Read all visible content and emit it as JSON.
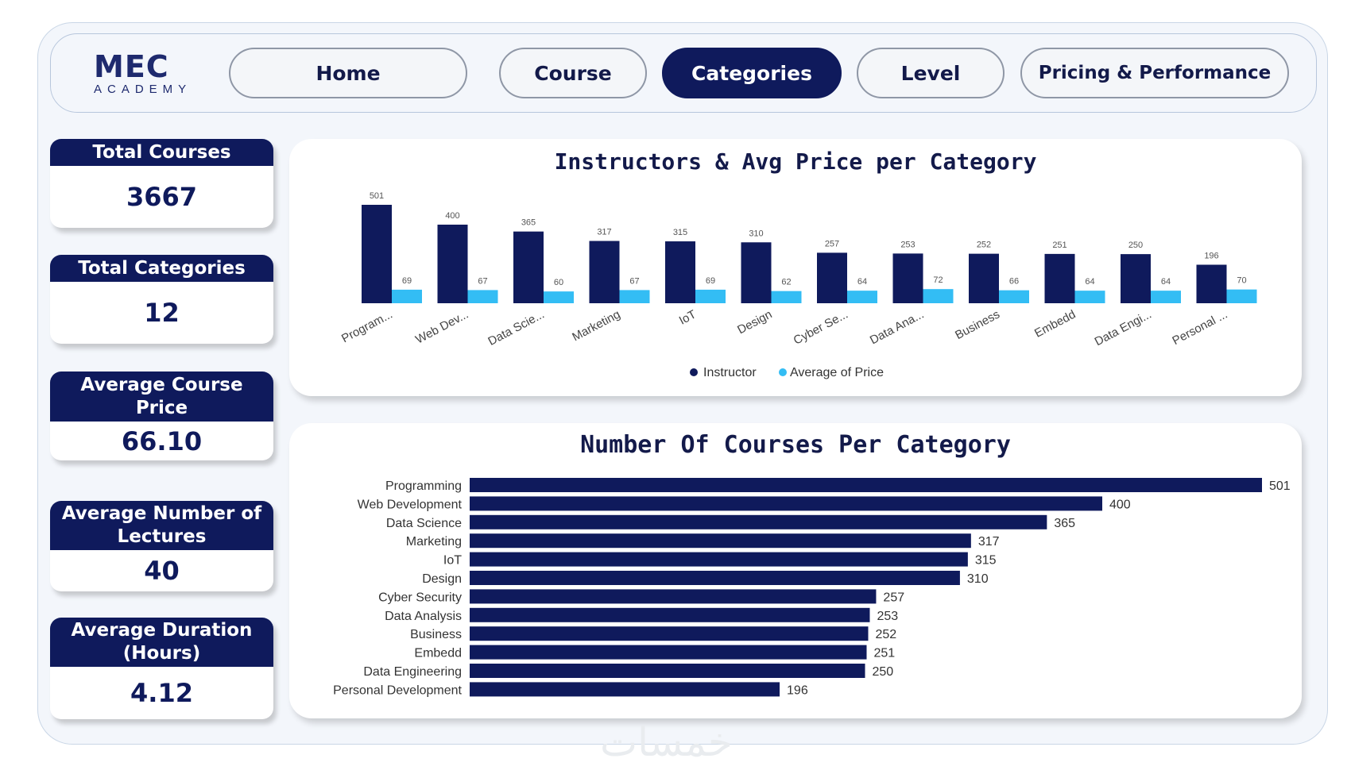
{
  "brand": {
    "logo_main": "MEC",
    "logo_sub": "ACADEMY"
  },
  "nav": {
    "home": "Home",
    "course": "Course",
    "categories": "Categories",
    "level": "Level",
    "pricing": "Pricing & Performance",
    "active": "categories"
  },
  "kpis": {
    "total_courses": {
      "label": "Total Courses",
      "value": "3667"
    },
    "total_categories": {
      "label": "Total Categories",
      "value": "12"
    },
    "avg_price": {
      "label": "Average Course Price",
      "value": "66.10"
    },
    "avg_lectures": {
      "label": "Average Number of Lectures",
      "value": "40"
    },
    "avg_duration": {
      "label": "Average Duration (Hours)",
      "value": "4.12"
    }
  },
  "colors": {
    "navy": "#0f1a5c",
    "light_blue": "#33bdf4",
    "text": "#131a4a"
  },
  "chart_data": [
    {
      "type": "bar",
      "title": "Instructors & Avg Price per Category",
      "categories": [
        "Program...",
        "Web Dev...",
        "Data Scie...",
        "Marketing",
        "IoT",
        "Design",
        "Cyber Se...",
        "Data Ana...",
        "Business",
        "Embedd",
        "Data Engi...",
        "Personal ..."
      ],
      "series": [
        {
          "name": "Instructor",
          "color": "#0f1a5c",
          "values": [
            501,
            400,
            365,
            317,
            315,
            310,
            257,
            253,
            252,
            251,
            250,
            196
          ]
        },
        {
          "name": "Average of Price",
          "color": "#33bdf4",
          "values": [
            69,
            67,
            60,
            67,
            69,
            62,
            64,
            72,
            66,
            64,
            64,
            70
          ]
        }
      ],
      "ylim": [
        0,
        501
      ],
      "legend": "bottom-center",
      "grid": false
    },
    {
      "type": "bar",
      "orientation": "horizontal",
      "title": "Number Of Courses Per Category",
      "categories": [
        "Programming",
        "Web Development",
        "Data Science",
        "Marketing",
        "IoT",
        "Design",
        "Cyber Security",
        "Data Analysis",
        "Business",
        "Embedd",
        "Data Engineering",
        "Personal Development"
      ],
      "values": [
        501,
        400,
        365,
        317,
        315,
        310,
        257,
        253,
        252,
        251,
        250,
        196
      ],
      "color": "#0f1a5c",
      "xlim": [
        0,
        501
      ],
      "grid": false
    }
  ],
  "watermark": "خمسات"
}
